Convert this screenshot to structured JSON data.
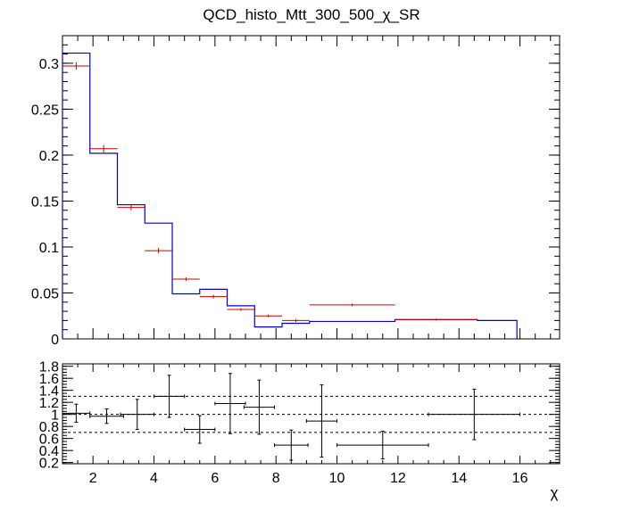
{
  "title": "QCD_histo_Mtt_300_500_χ_SR",
  "xlabel": "χ",
  "colors": {
    "histogram": "#0000cc",
    "points": "#cc0000",
    "ratio": "#000000",
    "frame": "#000000"
  },
  "chart_data": [
    {
      "type": "histogram",
      "panel": "main",
      "xlim": [
        1,
        17.3
      ],
      "ylim": [
        0,
        0.33
      ],
      "yticks": [
        "0",
        "0.05",
        "0.1",
        "0.15",
        "0.2",
        "0.25",
        "0.3"
      ],
      "ytick_values": [
        0,
        0.05,
        0.1,
        0.15,
        0.2,
        0.25,
        0.3
      ],
      "xticks": [
        "2",
        "4",
        "6",
        "8",
        "10",
        "12",
        "14",
        "16"
      ],
      "xtick_values": [
        2,
        4,
        6,
        8,
        10,
        12,
        14,
        16
      ],
      "bins": [
        {
          "lo": 1.0,
          "hi": 1.9,
          "hist": 0.311,
          "point": 0.297,
          "err": 0.004
        },
        {
          "lo": 1.9,
          "hi": 2.8,
          "hist": 0.202,
          "point": 0.207,
          "err": 0.004
        },
        {
          "lo": 2.8,
          "hi": 3.7,
          "hist": 0.146,
          "point": 0.143,
          "err": 0.003
        },
        {
          "lo": 3.7,
          "hi": 4.6,
          "hist": 0.126,
          "point": 0.096,
          "err": 0.003
        },
        {
          "lo": 4.6,
          "hi": 5.5,
          "hist": 0.049,
          "point": 0.065,
          "err": 0.002
        },
        {
          "lo": 5.5,
          "hi": 6.4,
          "hist": 0.054,
          "point": 0.046,
          "err": 0.002
        },
        {
          "lo": 6.4,
          "hi": 7.3,
          "hist": 0.036,
          "point": 0.032,
          "err": 0.0015
        },
        {
          "lo": 7.3,
          "hi": 8.2,
          "hist": 0.013,
          "point": 0.025,
          "err": 0.0015
        },
        {
          "lo": 8.2,
          "hi": 9.1,
          "hist": 0.017,
          "point": 0.02,
          "err": 0.0015
        },
        {
          "lo": 9.1,
          "hi": 11.9,
          "hist": 0.019,
          "point": 0.037,
          "err": 0.0015
        },
        {
          "lo": 11.9,
          "hi": 14.6,
          "hist": 0.021,
          "point": 0.021,
          "err": 0.001
        },
        {
          "lo": 14.6,
          "hi": 15.9,
          "hist": 0.02,
          "point": null,
          "err": null
        }
      ]
    },
    {
      "type": "ratio",
      "panel": "ratio",
      "xlim": [
        1,
        17.3
      ],
      "ylim": [
        0.18,
        1.84
      ],
      "yticks": [
        "0.2",
        "0.4",
        "0.6",
        "0.8",
        "1",
        "1.2",
        "1.4",
        "1.6",
        "1.8"
      ],
      "ytick_values": [
        0.2,
        0.4,
        0.6,
        0.8,
        1.0,
        1.2,
        1.4,
        1.6,
        1.8
      ],
      "reference_lines": [
        0.7,
        1.0,
        1.3
      ],
      "points": [
        {
          "x": 1.45,
          "xerr": 0.45,
          "y": 1.02,
          "yerr": 0.15
        },
        {
          "x": 2.45,
          "xerr": 0.55,
          "y": 0.97,
          "yerr": 0.12
        },
        {
          "x": 3.45,
          "xerr": 0.55,
          "y": 1.0,
          "yerr": 0.25
        },
        {
          "x": 4.5,
          "xerr": 0.5,
          "y": 1.3,
          "yerr": 0.35
        },
        {
          "x": 5.5,
          "xerr": 0.5,
          "y": 0.75,
          "yerr": 0.23
        },
        {
          "x": 6.5,
          "xerr": 0.5,
          "y": 1.18,
          "yerr": 0.5
        },
        {
          "x": 7.45,
          "xerr": 0.5,
          "y": 1.12,
          "yerr": 0.45
        },
        {
          "x": 8.5,
          "xerr": 0.55,
          "y": 0.49,
          "yerr": 0.25
        },
        {
          "x": 9.5,
          "xerr": 0.5,
          "y": 0.89,
          "yerr": 0.6
        },
        {
          "x": 11.5,
          "xerr": 1.5,
          "y": 0.49,
          "yerr": 0.23
        },
        {
          "x": 14.5,
          "xerr": 1.5,
          "y": 1.0,
          "yerr": 0.42
        }
      ]
    }
  ]
}
